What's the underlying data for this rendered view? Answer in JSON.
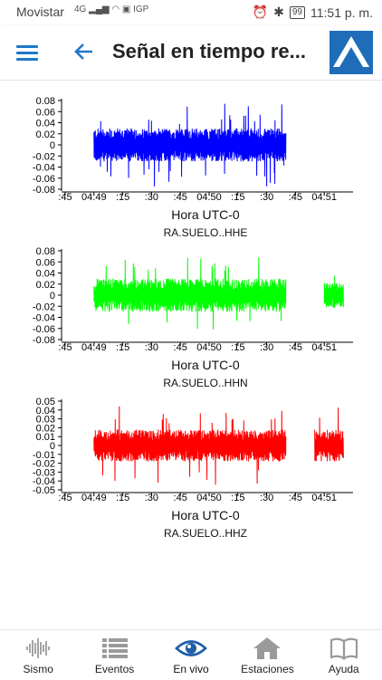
{
  "status_bar": {
    "carrier": "Movistar",
    "network": "4G",
    "igp": "IGP",
    "battery": "99",
    "time": "11:51 p. m."
  },
  "app_bar": {
    "title": "Señal en tiempo re..."
  },
  "colors": {
    "accent": "#1f78c8",
    "channel_hhe": "#0000ff",
    "channel_hhn": "#00ff00",
    "channel_hhz": "#ff0000"
  },
  "chart_data": [
    {
      "type": "line",
      "station": "RA.SUELO..HHE",
      "xlabel": "Hora UTC-0",
      "title": "RA.SUELO..HHE",
      "color": "#0000ff",
      "y_ticks": [
        "0.08",
        "0.06",
        "0.04",
        "0.02",
        "0",
        "-0.02",
        "-0.04",
        "-0.06",
        "-0.08"
      ],
      "ylim": [
        -0.08,
        0.08
      ],
      "x_ticks": [
        ":45",
        "04:49",
        ":15",
        ":30",
        ":45",
        "04:50",
        ":15",
        ":30",
        ":45",
        "04:51"
      ],
      "series": [
        {
          "x_range": [
            "04:49:00",
            "04:50:40"
          ],
          "amplitude": 0.02,
          "peak": 0.06,
          "min": -0.075
        }
      ]
    },
    {
      "type": "line",
      "station": "RA.SUELO..HHN",
      "xlabel": "Hora UTC-0",
      "title": "RA.SUELO..HHN",
      "color": "#00ff00",
      "y_ticks": [
        "0.08",
        "0.06",
        "0.04",
        "0.02",
        "0",
        "-0.02",
        "-0.04",
        "-0.06",
        "-0.08"
      ],
      "ylim": [
        -0.08,
        0.08
      ],
      "x_ticks": [
        ":45",
        "04:49",
        ":15",
        ":30",
        ":45",
        "04:50",
        ":15",
        ":30",
        ":45",
        "04:51"
      ],
      "series": [
        {
          "x_range": [
            "04:49:00",
            "04:50:40"
          ],
          "amplitude": 0.02,
          "peak": 0.07,
          "min": -0.07
        },
        {
          "x_range": [
            "04:51:00",
            "04:51:10"
          ],
          "amplitude": 0.015,
          "peak": 0.05,
          "min": -0.02
        }
      ]
    },
    {
      "type": "line",
      "station": "RA.SUELO..HHZ",
      "xlabel": "Hora UTC-0",
      "title": "RA.SUELO..HHZ",
      "color": "#ff0000",
      "y_ticks": [
        "0.05",
        "0.04",
        "0.03",
        "0.02",
        "0.01",
        "0",
        "-0.01",
        "-0.02",
        "-0.03",
        "-0.04",
        "-0.05"
      ],
      "ylim": [
        -0.05,
        0.05
      ],
      "x_ticks": [
        ":45",
        "04:49",
        ":15",
        ":30",
        ":45",
        "04:50",
        ":15",
        ":30",
        ":45",
        "04:51"
      ],
      "series": [
        {
          "x_range": [
            "04:49:00",
            "04:50:40"
          ],
          "amplitude": 0.012,
          "peak": 0.04,
          "min": -0.045
        },
        {
          "x_range": [
            "04:50:55",
            "04:51:10"
          ],
          "amplitude": 0.012,
          "peak": 0.04,
          "min": -0.045
        }
      ]
    }
  ],
  "bottom_nav": [
    {
      "label": "Sismo",
      "icon": "waveform-icon",
      "active": false
    },
    {
      "label": "Eventos",
      "icon": "list-icon",
      "active": false
    },
    {
      "label": "En vivo",
      "icon": "eye-icon",
      "active": true
    },
    {
      "label": "Estaciones",
      "icon": "home-icon",
      "active": false
    },
    {
      "label": "Ayuda",
      "icon": "book-icon",
      "active": false
    }
  ]
}
